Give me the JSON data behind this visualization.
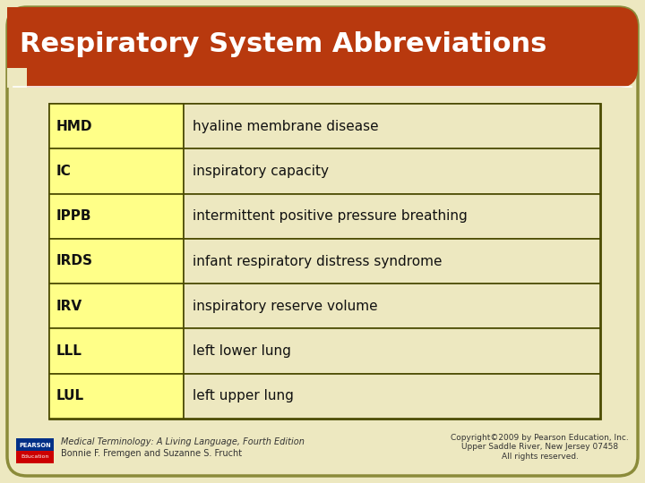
{
  "title": "Respiratory System Abbreviations",
  "title_bg_color": "#B8390E",
  "title_text_color": "#FFFFFF",
  "bg_color": "#EDE8C0",
  "table_bg_color": "#EDE8C0",
  "abbrev_col_color": "#FFFF88",
  "outer_border_color": "#8B8B3A",
  "table_border_color": "#4A4A00",
  "rows": [
    [
      "HMD",
      "hyaline membrane disease"
    ],
    [
      "IC",
      "inspiratory capacity"
    ],
    [
      "IPPB",
      "intermittent positive pressure breathing"
    ],
    [
      "IRDS",
      "infant respiratory distress syndrome"
    ],
    [
      "IRV",
      "inspiratory reserve volume"
    ],
    [
      "LLL",
      "left lower lung"
    ],
    [
      "LUL",
      "left upper lung"
    ]
  ],
  "footer_left_italic": "Medical Terminology: A Living Language, Fourth Edition",
  "footer_left_normal": "Bonnie F. Fremgen and Suzanne S. Frucht",
  "footer_right_line1": "Copyright©2009 by Pearson Education, Inc.",
  "footer_right_line2": "Upper Saddle River, New Jersey 07458",
  "footer_right_line3": "All rights reserved.",
  "pearson_blue": "#003087",
  "pearson_red": "#CC0000",
  "fig_width": 7.2,
  "fig_height": 5.4,
  "dpi": 100
}
